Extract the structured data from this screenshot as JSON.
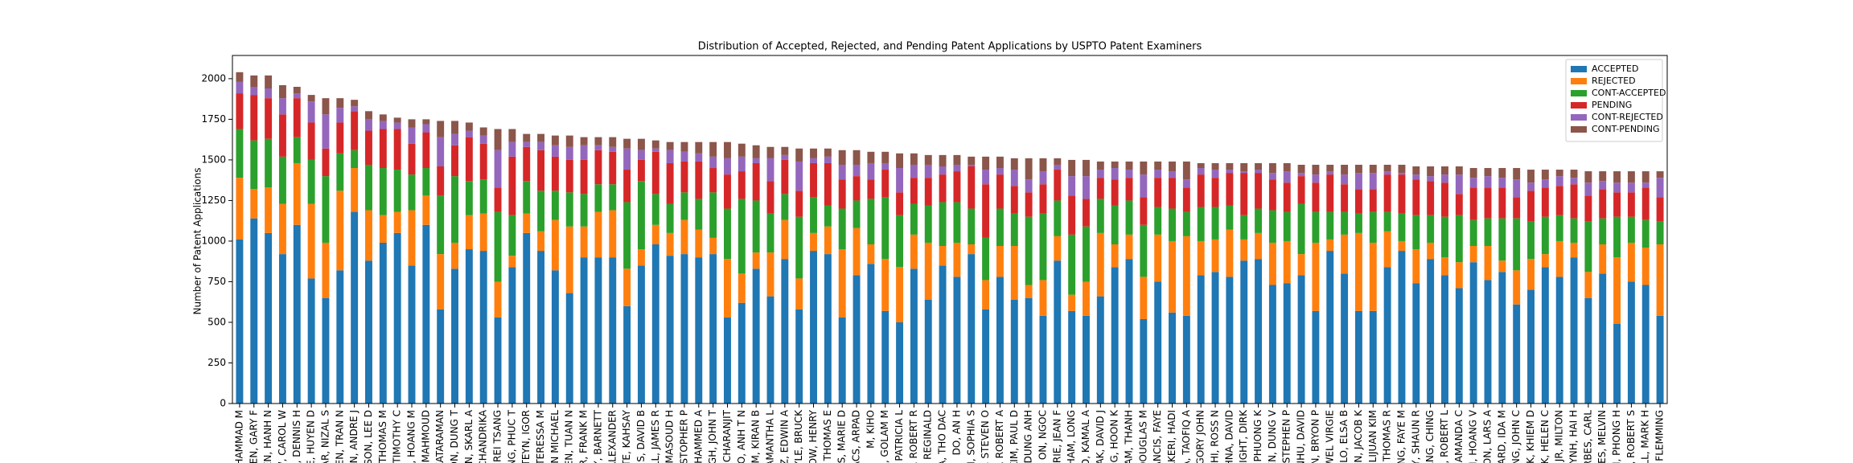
{
  "chart_data": {
    "type": "bar",
    "stacked": true,
    "title": "Distribution of Accepted, Rejected, and Pending Patent Applications by USPTO Patent Examiners",
    "y_label": "Number of Patent Applications",
    "categories": [
      "OHAMMAD M",
      "HEN, GARY F",
      "YEN, HANH N",
      "W, CAROL W",
      "R, DENNIS H",
      "LE, HUYEN D",
      "MAR, NIZAL S",
      "YEN, TRAN N",
      "HEN, ANDRE J",
      "ILSON, LEE D",
      "Y, THOMAS M",
      "Y, TIMOTHY C",
      "N, HOANG M",
      "E, MAHMOUD",
      "KATARAMAN",
      "ON, DUNG T",
      "ON, SKARL A",
      "CHANDRIKA",
      "R, REI TSANG",
      "ANG, PHUC T",
      "HTEYN, IGOR",
      "TERESSA M",
      "HEN MICHAEL",
      "YEN, TUAN N",
      "JR, FRANK M",
      "Y, BARNETT",
      "ALEXANDER",
      "BTE, KAHSAY",
      "MS, DAVID B",
      "ELL, JAMES R",
      "Y, MASOUD H",
      "RISTOPHER P",
      "OHAMMED A",
      "UGH, JOHN T",
      "CHARANJIT",
      "VO, ANH T N",
      "KIM, KIRAN B",
      "SAMANTHA L",
      "DZ, EDWIN A",
      "OYLE, BRUCK",
      "LOW, HENRY",
      "L, THOMAS E",
      "YS, MARIE D",
      "VACS, ARPAD",
      "M, KIHO",
      "M, GOLAM M",
      "ON, PATRICIA L",
      "S, ROBERT R",
      "LL, REGINALD",
      "A, THO DAC",
      "DO, AN H",
      "EN, SOPHIA S",
      "S, STEVEN O",
      "S, ROBERT A",
      "KIM, PAUL D",
      "DUNG ANH",
      "ON, NGOC",
      "NERIE, JEAN F",
      "PHAM, LONG",
      "EED, KAMAL A",
      "ZAK, DAVID J",
      "ANG, HOON K",
      "LAM, THANH",
      "DOUGLAS M",
      "ANCIS, FAYE",
      "AKERI, HADI",
      "DA, TAOFIQ A",
      "EGORY JOHN",
      "OSHI, ROSS N",
      "CHNA, DAVID",
      "RIGHT, DIRK",
      "K, PHUONG K",
      "YEN, DUNG V",
      "NG, STEPHEN P",
      "NHU, DAVID",
      "AN, BRYON P",
      "EWEL VIRGIE",
      "HILO, ELSA B",
      "UN, JACOB K",
      "HUI, LIJUAN KIM",
      "N, THOMAS R",
      "MING, FAYE M",
      "EY, SHAUN R",
      "ANG, CHING",
      "ES, ROBERT L",
      "AMANDA C",
      "N, HOANG V",
      "SON, LARS A",
      "WARD, IDA M",
      "IONG, JOHN C",
      "OK, KHIEM D",
      "OK, HELEN C",
      "N JR, MILTON",
      "UYNH, HAI H",
      "RBES, CARL",
      "NES, MELVIN",
      "ON, PHONG H",
      "E, ROBERT S",
      "ALL, MARK H",
      "S, FLEMMING"
    ],
    "series": [
      {
        "name": "ACCEPTED",
        "color": "#1f77b4",
        "values": [
          1010,
          1140,
          1050,
          920,
          1100,
          770,
          650,
          820,
          1180,
          880,
          990,
          1050,
          850,
          1100,
          580,
          830,
          950,
          940,
          530,
          840,
          1050,
          940,
          820,
          680,
          900,
          900,
          900,
          600,
          850,
          980,
          910,
          920,
          900,
          920,
          530,
          620,
          830,
          660,
          890,
          580,
          940,
          920,
          530,
          790,
          860,
          570,
          500,
          830,
          640,
          850,
          780,
          920,
          580,
          780,
          640,
          650,
          540,
          880,
          570,
          540,
          660,
          840,
          890,
          520,
          750,
          560,
          540,
          790,
          810,
          780,
          880,
          890,
          730,
          740,
          790,
          570,
          940,
          800,
          570,
          570,
          840,
          940,
          740,
          890,
          790,
          710,
          870,
          760,
          810,
          610,
          700,
          840,
          780,
          900,
          650,
          800,
          490,
          750,
          730,
          540
        ]
      },
      {
        "name": "REJECTED",
        "color": "#ff7f0e",
        "values": [
          380,
          180,
          280,
          310,
          380,
          460,
          340,
          490,
          270,
          310,
          170,
          130,
          340,
          180,
          340,
          160,
          210,
          230,
          220,
          70,
          120,
          120,
          310,
          410,
          190,
          280,
          290,
          230,
          100,
          120,
          140,
          210,
          170,
          100,
          360,
          180,
          100,
          270,
          240,
          190,
          110,
          170,
          420,
          290,
          120,
          320,
          340,
          210,
          350,
          120,
          210,
          60,
          180,
          190,
          330,
          80,
          220,
          150,
          100,
          210,
          390,
          140,
          150,
          260,
          290,
          440,
          490,
          210,
          200,
          290,
          130,
          160,
          260,
          260,
          130,
          420,
          70,
          240,
          480,
          420,
          220,
          60,
          210,
          100,
          110,
          160,
          100,
          210,
          70,
          210,
          190,
          80,
          220,
          90,
          160,
          180,
          410,
          240,
          230,
          440
        ]
      },
      {
        "name": "CONT-ACCEPTED",
        "color": "#2ca02c",
        "values": [
          300,
          300,
          300,
          290,
          160,
          270,
          410,
          230,
          110,
          280,
          290,
          260,
          220,
          170,
          360,
          410,
          210,
          210,
          430,
          250,
          200,
          250,
          180,
          210,
          200,
          170,
          160,
          410,
          420,
          190,
          180,
          170,
          190,
          280,
          310,
          460,
          320,
          240,
          160,
          380,
          220,
          130,
          250,
          170,
          280,
          380,
          320,
          190,
          230,
          270,
          250,
          220,
          260,
          230,
          200,
          420,
          410,
          220,
          370,
          340,
          210,
          240,
          210,
          320,
          170,
          200,
          150,
          210,
          200,
          150,
          150,
          150,
          200,
          180,
          310,
          190,
          170,
          140,
          120,
          190,
          120,
          170,
          210,
          170,
          250,
          290,
          160,
          170,
          260,
          320,
          230,
          230,
          160,
          150,
          310,
          160,
          250,
          160,
          170,
          140
        ]
      },
      {
        "name": "PENDING",
        "color": "#d62728",
        "values": [
          220,
          280,
          250,
          260,
          240,
          230,
          170,
          190,
          240,
          210,
          240,
          250,
          190,
          220,
          180,
          190,
          270,
          220,
          150,
          360,
          210,
          250,
          210,
          200,
          210,
          210,
          200,
          200,
          130,
          260,
          250,
          190,
          230,
          150,
          210,
          170,
          230,
          200,
          210,
          160,
          210,
          260,
          180,
          150,
          120,
          170,
          140,
          160,
          170,
          170,
          190,
          260,
          330,
          210,
          170,
          150,
          180,
          190,
          240,
          170,
          130,
          160,
          140,
          170,
          180,
          190,
          150,
          200,
          180,
          200,
          260,
          220,
          190,
          180,
          170,
          180,
          230,
          170,
          150,
          140,
          230,
          240,
          220,
          210,
          210,
          130,
          200,
          190,
          190,
          130,
          190,
          180,
          180,
          210,
          160,
          180,
          150,
          150,
          200,
          150
        ]
      },
      {
        "name": "CONT-REJECTED",
        "color": "#9467bd",
        "values": [
          70,
          50,
          60,
          100,
          30,
          130,
          210,
          90,
          30,
          70,
          50,
          40,
          100,
          50,
          180,
          70,
          40,
          50,
          230,
          90,
          30,
          50,
          70,
          80,
          90,
          30,
          30,
          130,
          60,
          20,
          80,
          60,
          50,
          70,
          100,
          90,
          30,
          140,
          30,
          180,
          30,
          40,
          90,
          70,
          100,
          40,
          150,
          80,
          80,
          50,
          40,
          10,
          90,
          40,
          100,
          80,
          80,
          30,
          120,
          140,
          50,
          70,
          50,
          140,
          50,
          40,
          50,
          40,
          50,
          20,
          10,
          20,
          40,
          70,
          20,
          50,
          20,
          60,
          100,
          100,
          20,
          10,
          30,
          30,
          50,
          120,
          60,
          70,
          60,
          110,
          50,
          50,
          60,
          40,
          80,
          50,
          60,
          60,
          30,
          120
        ]
      },
      {
        "name": "CONT-PENDING",
        "color": "#8c564b",
        "values": [
          60,
          70,
          80,
          80,
          40,
          40,
          100,
          60,
          40,
          50,
          40,
          30,
          50,
          30,
          100,
          80,
          50,
          50,
          130,
          80,
          50,
          50,
          60,
          70,
          50,
          50,
          60,
          60,
          70,
          50,
          50,
          60,
          70,
          90,
          100,
          80,
          80,
          70,
          50,
          80,
          60,
          50,
          90,
          90,
          70,
          70,
          90,
          70,
          60,
          70,
          60,
          50,
          80,
          70,
          70,
          130,
          80,
          40,
          100,
          100,
          50,
          40,
          50,
          80,
          50,
          60,
          110,
          30,
          40,
          40,
          50,
          40,
          60,
          50,
          50,
          60,
          40,
          60,
          50,
          50,
          40,
          50,
          50,
          60,
          50,
          50,
          60,
          50,
          60,
          70,
          80,
          60,
          40,
          50,
          70,
          60,
          70,
          70,
          70,
          40
        ]
      }
    ],
    "ylim": [
      0,
      2143
    ],
    "yticks": [
      0,
      250,
      500,
      750,
      1000,
      1250,
      1500,
      1750,
      2000
    ],
    "grid": false,
    "legend": "upper right"
  }
}
